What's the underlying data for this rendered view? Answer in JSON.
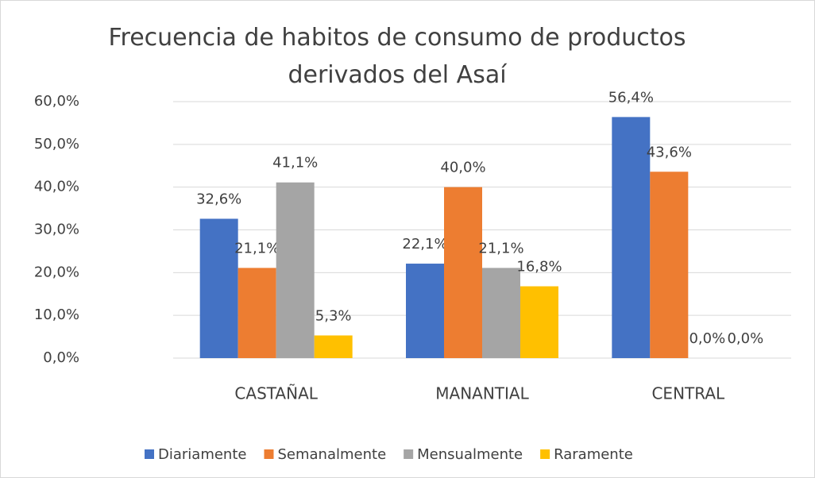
{
  "chart_data": {
    "type": "bar",
    "title": "Frecuencia de habitos de consumo de productos derivados del Asaí",
    "categories": [
      "CASTAÑAL",
      "MANANTIAL",
      "CENTRAL"
    ],
    "series": [
      {
        "name": "Diariamente",
        "color": "#4472c4",
        "values": [
          32.6,
          22.1,
          56.4
        ],
        "value_labels": [
          "32,6%",
          "22,1%",
          "56,4%"
        ]
      },
      {
        "name": "Semanalmente",
        "color": "#ed7d31",
        "values": [
          21.1,
          40.0,
          43.6
        ],
        "value_labels": [
          "21,1%",
          "40,0%",
          "43,6%"
        ]
      },
      {
        "name": "Mensualmente",
        "color": "#a5a5a5",
        "values": [
          41.1,
          21.1,
          0.0
        ],
        "value_labels": [
          "41,1%",
          "21,1%",
          "0,0%"
        ]
      },
      {
        "name": "Raramente",
        "color": "#ffc000",
        "values": [
          5.3,
          16.8,
          0.0
        ],
        "value_labels": [
          "5,3%",
          "16,8%",
          "0,0%"
        ]
      }
    ],
    "ylim": [
      0,
      60
    ],
    "yticks": [
      {
        "value": 0,
        "label": "0,0%"
      },
      {
        "value": 10,
        "label": "10,0%"
      },
      {
        "value": 20,
        "label": "20,0%"
      },
      {
        "value": 30,
        "label": "30,0%"
      },
      {
        "value": 40,
        "label": "40,0%"
      },
      {
        "value": 50,
        "label": "50,0%"
      },
      {
        "value": 60,
        "label": "60,0%"
      }
    ],
    "grid": true,
    "legend": "bottom"
  }
}
